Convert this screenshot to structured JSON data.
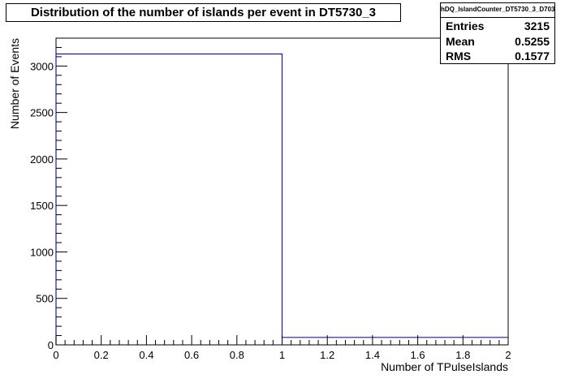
{
  "chart_data": {
    "type": "bar",
    "title": "Distribution of the number of islands per event in DT5730_3",
    "xlabel": "Number of TPulseIslands",
    "ylabel": "Number of Events",
    "xlim": [
      0,
      2
    ],
    "ylim": [
      0,
      3300
    ],
    "bin_edges": [
      0,
      1,
      2
    ],
    "values": [
      3130,
      80
    ],
    "x_ticks": [
      "0",
      "0.2",
      "0.4",
      "0.6",
      "0.8",
      "1",
      "1.2",
      "1.4",
      "1.6",
      "1.8",
      "2"
    ],
    "y_ticks": [
      "0",
      "500",
      "1000",
      "1500",
      "2000",
      "2500",
      "3000"
    ],
    "line_color": "#1c1ca0",
    "grid": false,
    "legend": "none"
  },
  "stats": {
    "name": "hDQ_IslandCounter_DT5730_3_D703",
    "entries_label": "Entries",
    "entries_value": "3215",
    "mean_label": "Mean",
    "mean_value": "0.5255",
    "rms_label": "RMS",
    "rms_value": "0.1577"
  }
}
